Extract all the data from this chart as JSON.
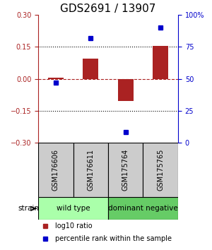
{
  "title": "GDS2691 / 13907",
  "samples": [
    "GSM176606",
    "GSM176611",
    "GSM175764",
    "GSM175765"
  ],
  "log10_ratio": [
    0.005,
    0.095,
    -0.105,
    0.155
  ],
  "percentile_rank": [
    47,
    82,
    8,
    90
  ],
  "groups": [
    {
      "label": "wild type",
      "samples": [
        0,
        1
      ],
      "color": "#aaffaa"
    },
    {
      "label": "dominant negative",
      "samples": [
        2,
        3
      ],
      "color": "#66cc66"
    }
  ],
  "bar_color": "#aa2222",
  "dot_color": "#0000cc",
  "ylim_left": [
    -0.3,
    0.3
  ],
  "ylim_right": [
    0,
    100
  ],
  "yticks_left": [
    -0.3,
    -0.15,
    0,
    0.15,
    0.3
  ],
  "yticks_right": [
    0,
    25,
    50,
    75,
    100
  ],
  "hlines_dotted": [
    -0.15,
    0.15
  ],
  "hline_dashed": 0,
  "title_fontsize": 11,
  "tick_fontsize": 7,
  "sample_fontsize": 7,
  "label_fontsize": 7.5,
  "legend_fontsize": 7,
  "bar_width": 0.45,
  "sample_box_color": "#cccccc",
  "spine_color": "#888888"
}
